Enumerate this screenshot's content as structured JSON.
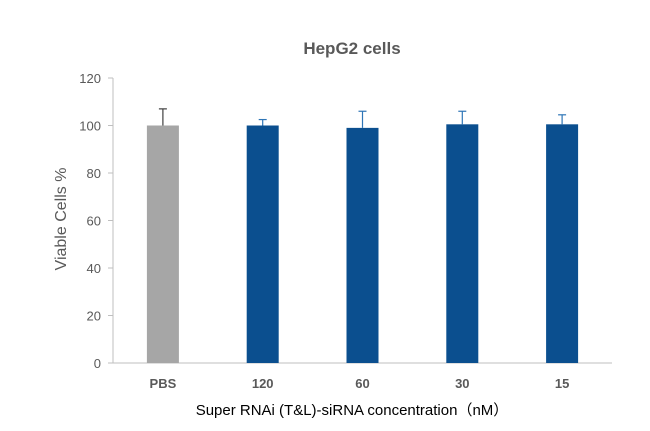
{
  "chart_data": {
    "type": "bar",
    "title": "HepG2 cells",
    "xlabel": "Super RNAi (T&L)-siRNA concentration（nM）",
    "ylabel": "Viable Cells %",
    "categories": [
      "PBS",
      "120",
      "60",
      "30",
      "15"
    ],
    "values": [
      100,
      100,
      99,
      100.5,
      100.5
    ],
    "errors": [
      7,
      2.5,
      7,
      5.5,
      4
    ],
    "bar_colors": [
      "#a6a6a6",
      "#0b4f8f",
      "#0b4f8f",
      "#0b4f8f",
      "#0b4f8f"
    ],
    "error_colors": [
      "#404040",
      "#2e75b6",
      "#2e75b6",
      "#2e75b6",
      "#2e75b6"
    ],
    "ylim": [
      0,
      120
    ],
    "yticks": [
      0,
      20,
      40,
      60,
      80,
      100,
      120
    ],
    "grid": false,
    "legend": false
  }
}
